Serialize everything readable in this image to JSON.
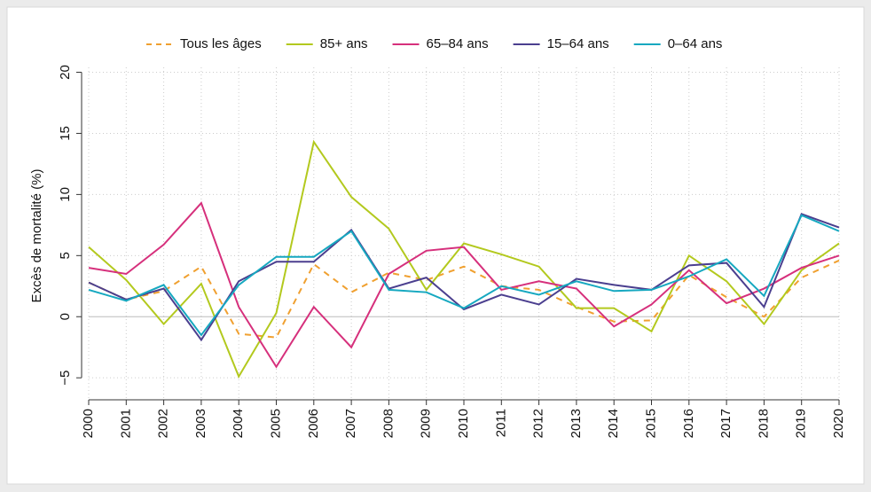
{
  "chart_data": {
    "type": "line",
    "y_label": "Excès de mortalité (%)",
    "x": [
      2000,
      2001,
      2002,
      2003,
      2004,
      2005,
      2006,
      2007,
      2008,
      2009,
      2010,
      2011,
      2012,
      2013,
      2014,
      2015,
      2016,
      2017,
      2018,
      2019,
      2020
    ],
    "xlim": [
      2000,
      2020
    ],
    "xticks": [
      2000,
      2001,
      2002,
      2003,
      2004,
      2005,
      2006,
      2007,
      2008,
      2009,
      2010,
      2011,
      2012,
      2013,
      2014,
      2015,
      2016,
      2017,
      2018,
      2019,
      2020
    ],
    "ylim": [
      -6.8,
      20.4
    ],
    "yticks": [
      {
        "value": -5,
        "label": "−5"
      },
      0,
      5,
      10,
      15,
      20
    ],
    "grid": true,
    "legend": "top",
    "series": [
      {
        "name": "Tous les âges",
        "color": "#f0a030",
        "dash": "dashed",
        "values": [
          2.8,
          1.4,
          2.1,
          4.1,
          -1.4,
          -1.7,
          4.3,
          2.0,
          3.6,
          3.0,
          4.1,
          2.5,
          2.2,
          0.8,
          -0.4,
          -0.3,
          3.4,
          1.6,
          0,
          3.2,
          4.6
        ]
      },
      {
        "name": "85+ ans",
        "color": "#b3c91e",
        "dash": "solid",
        "values": [
          5.7,
          3.0,
          -0.6,
          2.7,
          -4.9,
          0.3,
          14.3,
          9.8,
          7.2,
          2.2,
          6.0,
          5.1,
          4.1,
          0.7,
          0.7,
          -1.2,
          5.0,
          2.9,
          -0.6,
          3.8,
          6.0
        ]
      },
      {
        "name": "65–84 ans",
        "color": "#d6307c",
        "dash": "solid",
        "values": [
          4.0,
          3.5,
          5.9,
          9.3,
          0.8,
          -4.1,
          0.8,
          -2.5,
          3.5,
          5.4,
          5.7,
          2.2,
          2.9,
          2.3,
          -0.8,
          1.0,
          3.8,
          1.1,
          2.3,
          4.0,
          5.0
        ]
      },
      {
        "name": "15–64 ans",
        "color": "#4b3f8f",
        "dash": "solid",
        "values": [
          2.8,
          1.4,
          2.3,
          -1.9,
          2.9,
          4.5,
          4.5,
          7.1,
          2.3,
          3.2,
          0.6,
          1.8,
          1.0,
          3.1,
          2.6,
          2.2,
          4.2,
          4.4,
          0.8,
          8.4,
          7.3
        ]
      },
      {
        "name": "0–64 ans",
        "color": "#16a8c0",
        "dash": "solid",
        "values": [
          2.2,
          1.3,
          2.6,
          -1.5,
          2.6,
          4.9,
          4.9,
          7.0,
          2.2,
          2.0,
          0.7,
          2.5,
          1.8,
          2.9,
          2.1,
          2.2,
          3.3,
          4.7,
          1.7,
          8.3,
          7.0
        ]
      }
    ]
  }
}
